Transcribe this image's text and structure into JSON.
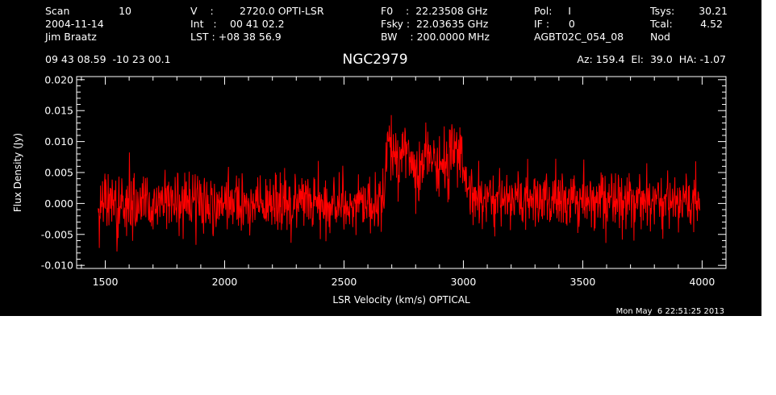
{
  "header": {
    "scan_label": "Scan",
    "scan_value": "10",
    "date": "2004-11-14",
    "observer": "Jim Braatz",
    "v_label": "V    :",
    "v_value": "2720.0 OPTI-LSR",
    "int_label": "Int   :",
    "int_value": "00 41 02.2",
    "lst_label": "LST : +08 38 56.9",
    "f0": "F0    :  22.23508 GHz",
    "fsky": "Fsky :  22.03635 GHz",
    "bw": "BW    : 200.0000 MHz",
    "pol": "Pol:     I",
    "if": "IF :      0",
    "project": "AGBT02C_054_08",
    "tsys_label": "Tsys:",
    "tsys_value": "30.21",
    "tcal_label": "Tcal:",
    "tcal_value": "4.52",
    "mode": "Nod",
    "coords": "09 43 08.59  -10 23 00.1",
    "source": "NGC2979",
    "azelha": "Az: 159.4  El:  39.0  HA: -1.07"
  },
  "timestamp": "Mon May  6 22:51:25 2013",
  "chart_data": {
    "type": "line",
    "title": "NGC2979",
    "xlabel": "LSR Velocity (km/s) OPTICAL",
    "ylabel": "Flux Density (Jy)",
    "xlim": [
      1380,
      4100
    ],
    "ylim": [
      -0.0105,
      0.0205
    ],
    "x_ticks": [
      1500,
      2000,
      2500,
      3000,
      3500,
      4000
    ],
    "y_ticks": [
      -0.01,
      -0.005,
      0.0,
      0.005,
      0.01,
      0.015,
      0.02
    ],
    "x_tick_labels": [
      "1500",
      "2000",
      "2500",
      "3000",
      "3500",
      "4000"
    ],
    "y_tick_labels": [
      "-0.010",
      "-0.005",
      "0.000",
      "0.005",
      "0.010",
      "0.015",
      "0.020"
    ],
    "grid": false,
    "series": [
      {
        "color": "#ff0000",
        "x_range": [
          1470,
          3990
        ],
        "noise_rms": 0.0025,
        "baseline": 0.0,
        "profile_x": [
          1470,
          2650,
          2665,
          2685,
          2705,
          2720,
          2745,
          2770,
          2790,
          2810,
          2830,
          2855,
          2875,
          2900,
          2925,
          2955,
          2970,
          2990,
          3010,
          3030,
          3060,
          3990
        ],
        "profile_y": [
          0.0,
          0.0,
          0.002,
          0.0095,
          0.0085,
          0.0055,
          0.0085,
          0.009,
          0.0045,
          0.0035,
          0.0055,
          0.0095,
          0.0065,
          0.006,
          0.006,
          0.008,
          0.009,
          0.006,
          0.0025,
          0.001,
          0.0005,
          0.0
        ]
      }
    ]
  }
}
